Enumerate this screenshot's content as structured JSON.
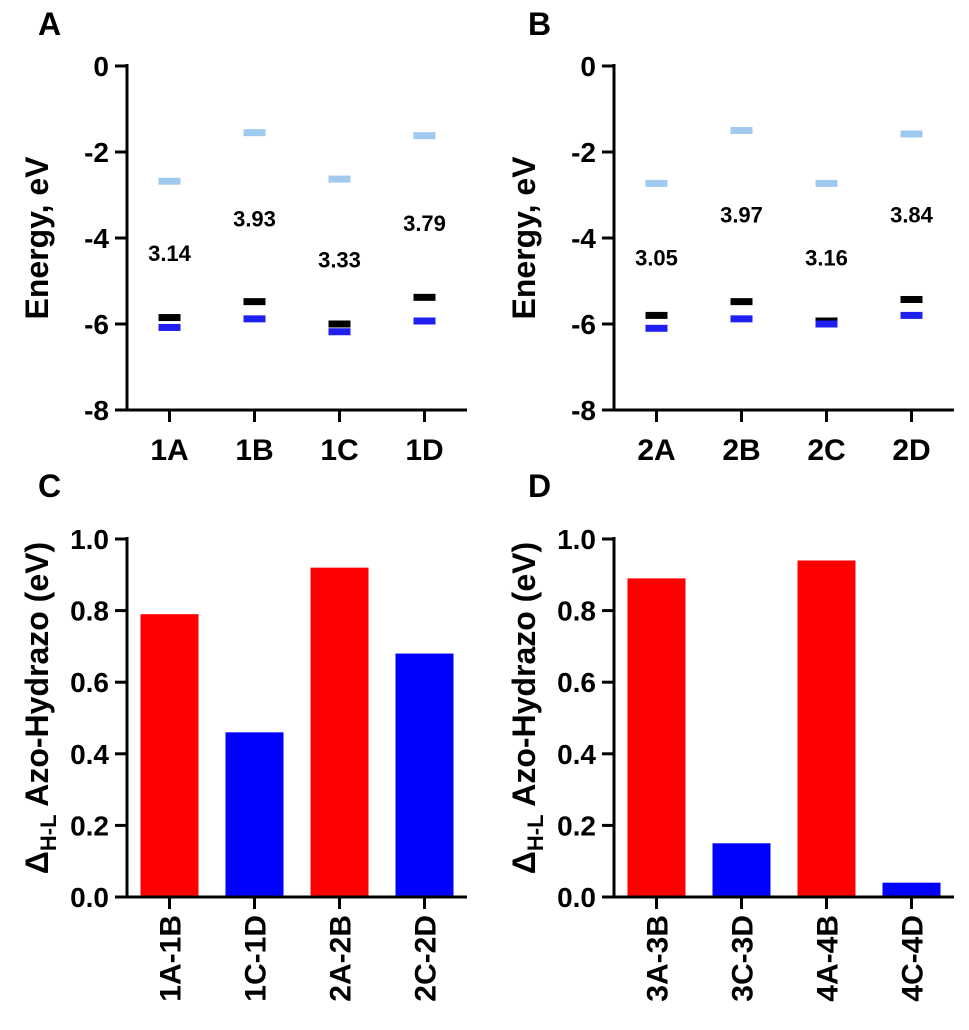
{
  "colors": {
    "lumo": "#9fc9ef",
    "homo_a": "#000000",
    "homo_b": "#1f1ff0",
    "red": "#ff0000",
    "blue": "#0000ff"
  },
  "chart_data": [
    {
      "panel": "A",
      "type": "energy-levels",
      "ylabel": "Energy, eV",
      "ylim": [
        -8,
        0
      ],
      "yticks": [
        "0",
        "-2",
        "-4",
        "-6",
        "-8"
      ],
      "ytick_values": [
        0,
        -2,
        -4,
        -6,
        -8
      ],
      "categories": [
        "1A",
        "1B",
        "1C",
        "1D"
      ],
      "series": [
        {
          "values": [
            -2.68,
            -1.55,
            -2.63,
            -1.62
          ]
        },
        {
          "values": [
            -5.85,
            -5.48,
            -6.0,
            -5.38
          ]
        },
        {
          "values": [
            -6.08,
            -5.88,
            -6.18,
            -5.93
          ]
        }
      ],
      "gaps": [
        "3.14",
        "3.93",
        "3.33",
        "3.79"
      ],
      "gap_positions": [
        -4.35,
        -3.55,
        -4.5,
        -3.65
      ]
    },
    {
      "panel": "B",
      "type": "energy-levels",
      "ylabel": "Energy, eV",
      "ylim": [
        -8,
        0
      ],
      "yticks": [
        "0",
        "-2",
        "-4",
        "-6",
        "-8"
      ],
      "ytick_values": [
        0,
        -2,
        -4,
        -6,
        -8
      ],
      "categories": [
        "2A",
        "2B",
        "2C",
        "2D"
      ],
      "series": [
        {
          "values": [
            -2.73,
            -1.5,
            -2.73,
            -1.58
          ]
        },
        {
          "values": [
            -5.8,
            -5.48,
            -5.93,
            -5.43
          ]
        },
        {
          "values": [
            -6.1,
            -5.88,
            -6.0,
            -5.8
          ]
        }
      ],
      "gaps": [
        "3.05",
        "3.97",
        "3.16",
        "3.84"
      ],
      "gap_positions": [
        -4.45,
        -3.45,
        -4.45,
        -3.45
      ]
    },
    {
      "panel": "C",
      "type": "bar",
      "ylabel_main": "Δ",
      "ylabel_sub": "H-L",
      "ylabel_rest": " Azo-Hydrazo (eV)",
      "ylim": [
        0,
        1.0
      ],
      "yticks": [
        "0.0",
        "0.2",
        "0.4",
        "0.6",
        "0.8",
        "1.0"
      ],
      "ytick_values": [
        0,
        0.2,
        0.4,
        0.6,
        0.8,
        1.0
      ],
      "categories": [
        "1A-1B",
        "1C-1D",
        "2A-2B",
        "2C-2D"
      ],
      "values": [
        0.79,
        0.46,
        0.92,
        0.68
      ],
      "bar_colors": [
        "red",
        "blue",
        "red",
        "blue"
      ]
    },
    {
      "panel": "D",
      "type": "bar",
      "ylabel_main": "Δ",
      "ylabel_sub": "H-L",
      "ylabel_rest": " Azo-Hydrazo (eV)",
      "ylim": [
        0,
        1.0
      ],
      "yticks": [
        "0.0",
        "0.2",
        "0.4",
        "0.6",
        "0.8",
        "1.0"
      ],
      "ytick_values": [
        0,
        0.2,
        0.4,
        0.6,
        0.8,
        1.0
      ],
      "categories": [
        "3A-3B",
        "3C-3D",
        "4A-4B",
        "4C-4D"
      ],
      "values": [
        0.89,
        0.15,
        0.94,
        0.04
      ],
      "bar_colors": [
        "red",
        "blue",
        "red",
        "blue"
      ]
    }
  ]
}
